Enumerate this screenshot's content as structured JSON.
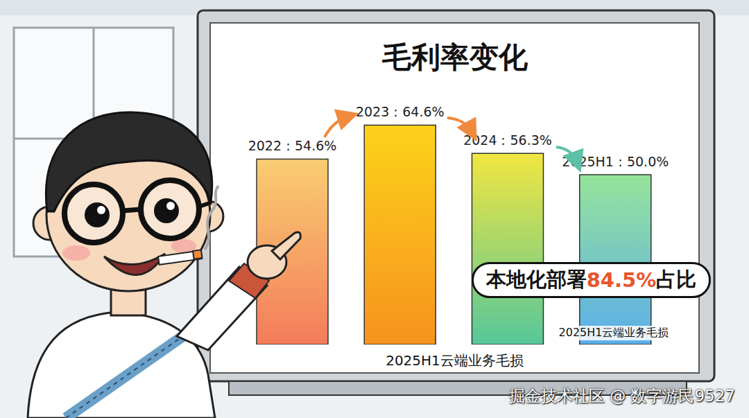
{
  "chart_data": {
    "type": "bar",
    "title": "毛利率变化",
    "categories": [
      "2022",
      "2023",
      "2024",
      "2025H1"
    ],
    "values": [
      54.6,
      64.6,
      56.3,
      50.0
    ],
    "value_labels": [
      "2022：54.6%",
      "2023：64.6%",
      "2024：56.3%",
      "2025H1：50.0%"
    ],
    "colors": [
      "#f47c5a",
      "#f7921e",
      "#56c79a",
      "#5aaeea"
    ],
    "ylim": [
      0,
      70
    ],
    "yticks": [],
    "tick_labels": false,
    "data_labels": true,
    "x_label": "2025H1云端业务毛损",
    "annotations": [
      "本地化部署84.5%占比",
      "2025H1云端业务毛损"
    ],
    "watermark": "掘金技术社区 @ 数字游民9527"
  }
}
